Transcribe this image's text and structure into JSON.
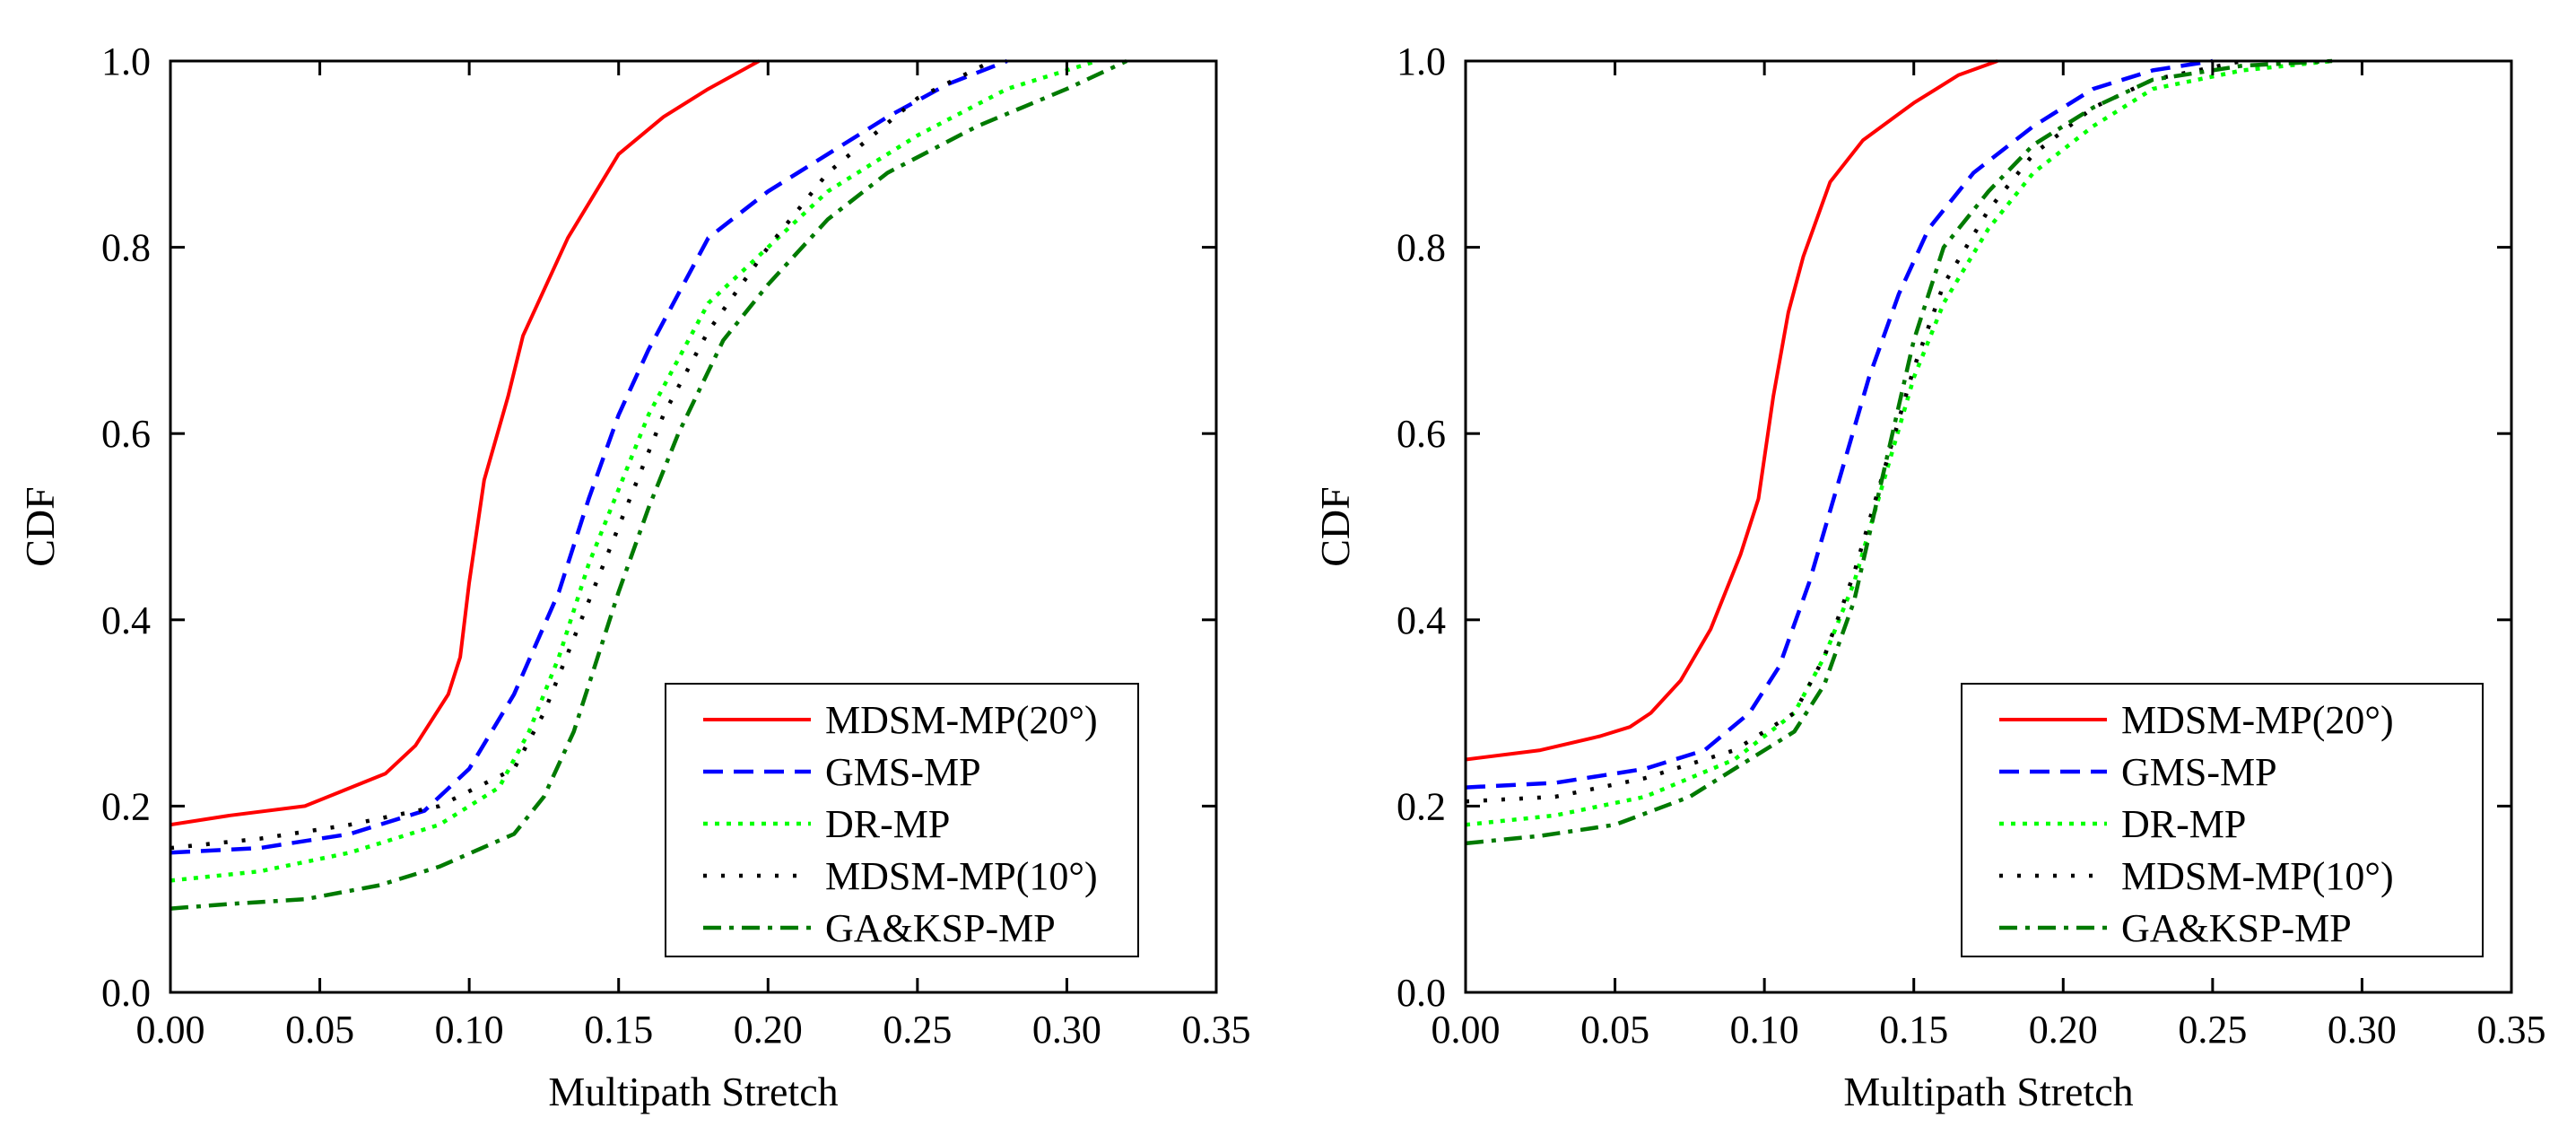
{
  "chart_data": [
    {
      "type": "line",
      "xlabel": "Multipath Stretch",
      "ylabel": "CDF",
      "xlim": [
        0,
        0.35
      ],
      "ylim": [
        0,
        1.0
      ],
      "xticks": [
        "0.00",
        "0.05",
        "0.10",
        "0.15",
        "0.20",
        "0.25",
        "0.30",
        "0.35"
      ],
      "yticks": [
        "0.0",
        "0.2",
        "0.4",
        "0.6",
        "0.8",
        "1.0"
      ],
      "grid": false,
      "legend_position": "bottom-right",
      "series": [
        {
          "name": "MDSM-MP(20°)",
          "color": "#ff0000",
          "dash": "solid",
          "x": [
            0,
            0.02,
            0.045,
            0.072,
            0.082,
            0.093,
            0.097,
            0.1,
            0.105,
            0.113,
            0.118,
            0.133,
            0.15,
            0.165,
            0.18,
            0.197
          ],
          "y": [
            0.18,
            0.19,
            0.2,
            0.235,
            0.265,
            0.32,
            0.36,
            0.44,
            0.55,
            0.64,
            0.705,
            0.81,
            0.9,
            0.94,
            0.97,
            1.0
          ]
        },
        {
          "name": "GMS-MP",
          "color": "#0000ff",
          "dash": "dashed",
          "x": [
            0,
            0.03,
            0.06,
            0.085,
            0.1,
            0.115,
            0.13,
            0.14,
            0.15,
            0.16,
            0.17,
            0.18,
            0.2,
            0.22,
            0.24,
            0.26,
            0.28
          ],
          "y": [
            0.15,
            0.155,
            0.17,
            0.195,
            0.24,
            0.32,
            0.43,
            0.53,
            0.62,
            0.69,
            0.75,
            0.81,
            0.86,
            0.9,
            0.94,
            0.975,
            1.0
          ]
        },
        {
          "name": "DR-MP",
          "color": "#00ff00",
          "dash": "dotted",
          "x": [
            0,
            0.03,
            0.06,
            0.09,
            0.11,
            0.12,
            0.13,
            0.14,
            0.15,
            0.16,
            0.17,
            0.18,
            0.2,
            0.22,
            0.25,
            0.28,
            0.31
          ],
          "y": [
            0.12,
            0.13,
            0.15,
            0.18,
            0.22,
            0.28,
            0.36,
            0.46,
            0.54,
            0.62,
            0.68,
            0.74,
            0.8,
            0.86,
            0.92,
            0.97,
            1.0
          ]
        },
        {
          "name": "MDSM-MP(10°)",
          "color": "#000000",
          "dash": "dotted-sparse",
          "x": [
            0,
            0.03,
            0.06,
            0.09,
            0.115,
            0.125,
            0.135,
            0.145,
            0.155,
            0.165,
            0.18,
            0.2,
            0.22,
            0.25,
            0.275
          ],
          "y": [
            0.155,
            0.165,
            0.18,
            0.2,
            0.24,
            0.3,
            0.38,
            0.46,
            0.54,
            0.62,
            0.71,
            0.8,
            0.88,
            0.96,
            1.0
          ]
        },
        {
          "name": "GA&KSP-MP",
          "color": "#007a00",
          "dash": "dashdot",
          "x": [
            0,
            0.02,
            0.045,
            0.07,
            0.09,
            0.115,
            0.125,
            0.135,
            0.15,
            0.16,
            0.17,
            0.185,
            0.2,
            0.22,
            0.24,
            0.27,
            0.3,
            0.32
          ],
          "y": [
            0.09,
            0.095,
            0.1,
            0.115,
            0.135,
            0.17,
            0.21,
            0.28,
            0.43,
            0.52,
            0.6,
            0.7,
            0.76,
            0.83,
            0.88,
            0.93,
            0.97,
            1.0
          ]
        }
      ]
    },
    {
      "type": "line",
      "xlabel": "Multipath Stretch",
      "ylabel": "CDF",
      "xlim": [
        0,
        0.35
      ],
      "ylim": [
        0,
        1.0
      ],
      "xticks": [
        "0.00",
        "0.05",
        "0.10",
        "0.15",
        "0.20",
        "0.25",
        "0.30",
        "0.35"
      ],
      "yticks": [
        "0.0",
        "0.2",
        "0.4",
        "0.6",
        "0.8",
        "1.0"
      ],
      "grid": false,
      "legend_position": "bottom-right",
      "series": [
        {
          "name": "MDSM-MP(20°)",
          "color": "#ff0000",
          "dash": "solid",
          "x": [
            0,
            0.025,
            0.045,
            0.055,
            0.062,
            0.072,
            0.082,
            0.092,
            0.098,
            0.103,
            0.108,
            0.113,
            0.122,
            0.133,
            0.15,
            0.165,
            0.178
          ],
          "y": [
            0.25,
            0.26,
            0.275,
            0.285,
            0.3,
            0.335,
            0.39,
            0.47,
            0.53,
            0.64,
            0.73,
            0.79,
            0.87,
            0.915,
            0.955,
            0.985,
            1.0
          ]
        },
        {
          "name": "GMS-MP",
          "color": "#0000ff",
          "dash": "dashed",
          "x": [
            0,
            0.03,
            0.06,
            0.08,
            0.095,
            0.105,
            0.115,
            0.125,
            0.135,
            0.145,
            0.155,
            0.17,
            0.19,
            0.21,
            0.23,
            0.25
          ],
          "y": [
            0.22,
            0.225,
            0.24,
            0.26,
            0.3,
            0.35,
            0.44,
            0.55,
            0.66,
            0.75,
            0.82,
            0.88,
            0.93,
            0.97,
            0.99,
            1.0
          ]
        },
        {
          "name": "DR-MP",
          "color": "#00ff00",
          "dash": "dotted",
          "x": [
            0,
            0.03,
            0.06,
            0.09,
            0.11,
            0.12,
            0.13,
            0.14,
            0.15,
            0.16,
            0.175,
            0.19,
            0.21,
            0.23,
            0.26,
            0.29
          ],
          "y": [
            0.18,
            0.19,
            0.21,
            0.25,
            0.3,
            0.36,
            0.44,
            0.55,
            0.66,
            0.74,
            0.82,
            0.88,
            0.93,
            0.97,
            0.99,
            1.0
          ]
        },
        {
          "name": "MDSM-MP(10°)",
          "color": "#000000",
          "dash": "dotted-sparse",
          "x": [
            0,
            0.03,
            0.06,
            0.09,
            0.11,
            0.12,
            0.13,
            0.14,
            0.15,
            0.16,
            0.175,
            0.19,
            0.21,
            0.23,
            0.26
          ],
          "y": [
            0.205,
            0.21,
            0.23,
            0.26,
            0.3,
            0.36,
            0.45,
            0.56,
            0.67,
            0.76,
            0.84,
            0.9,
            0.95,
            0.98,
            1.0
          ]
        },
        {
          "name": "GA&KSP-MP",
          "color": "#007a00",
          "dash": "dashdot",
          "x": [
            0,
            0.025,
            0.05,
            0.075,
            0.095,
            0.11,
            0.12,
            0.13,
            0.14,
            0.15,
            0.16,
            0.175,
            0.19,
            0.21,
            0.23,
            0.26,
            0.29
          ],
          "y": [
            0.16,
            0.168,
            0.18,
            0.21,
            0.25,
            0.28,
            0.33,
            0.42,
            0.56,
            0.7,
            0.8,
            0.86,
            0.91,
            0.95,
            0.98,
            0.995,
            1.0
          ]
        }
      ]
    }
  ]
}
